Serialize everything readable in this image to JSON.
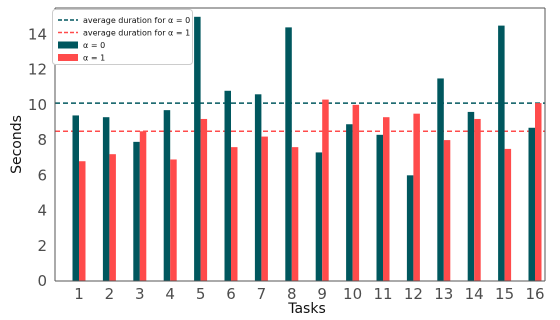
{
  "chart_data": {
    "type": "bar",
    "title": "",
    "xlabel": "Tasks",
    "ylabel": "Seconds",
    "categories": [
      "1",
      "2",
      "3",
      "4",
      "5",
      "6",
      "7",
      "8",
      "9",
      "10",
      "11",
      "12",
      "13",
      "14",
      "15",
      "16"
    ],
    "series": [
      {
        "name": "α = 0",
        "color": "#00575e",
        "values": [
          9.4,
          9.3,
          7.9,
          9.7,
          15.0,
          10.8,
          10.6,
          14.4,
          7.3,
          8.9,
          8.3,
          6.0,
          11.5,
          9.6,
          14.5,
          8.7
        ]
      },
      {
        "name": "α = 1",
        "color": "#ff4b4b",
        "values": [
          6.8,
          7.2,
          8.5,
          6.9,
          9.2,
          7.6,
          8.2,
          7.6,
          10.3,
          10.0,
          9.3,
          9.5,
          8.0,
          9.2,
          7.5,
          10.1
        ]
      }
    ],
    "reference_lines": [
      {
        "name": "average duration for α = 0",
        "value": 10.1,
        "color": "#00575e",
        "style": "dashed"
      },
      {
        "name": "average duration for α = 1",
        "value": 8.5,
        "color": "#ff4b4b",
        "style": "dashed"
      }
    ],
    "ylim": [
      0,
      15.5
    ],
    "yticks": [
      0,
      2,
      4,
      6,
      8,
      10,
      12,
      14
    ],
    "grid": false,
    "legend_position": "top-left"
  }
}
